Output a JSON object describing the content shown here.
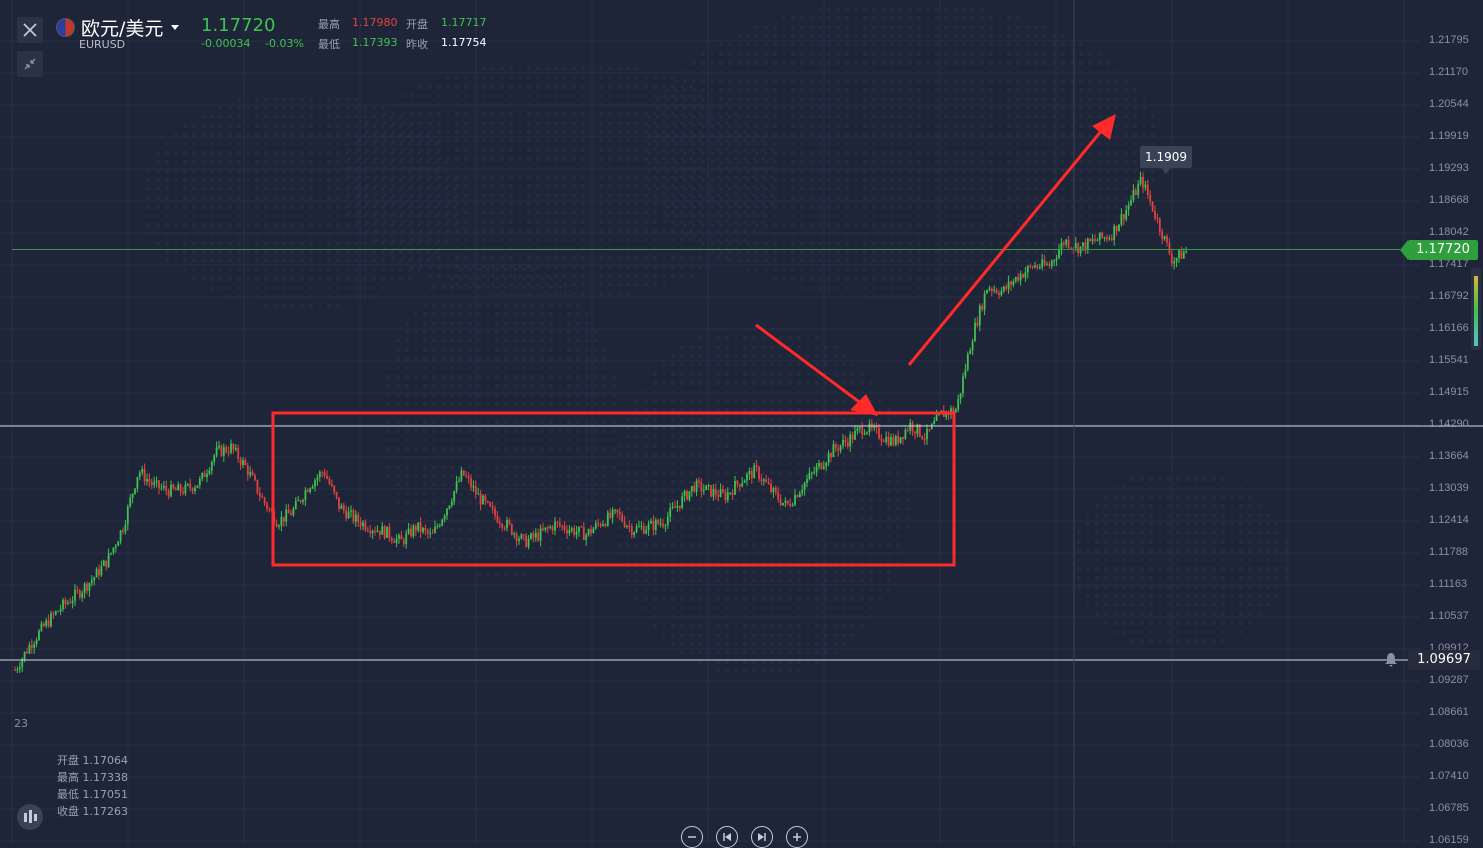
{
  "header": {
    "symbol_name": "欧元/美元",
    "symbol_code": "EURUSD",
    "last_price": "1.17720",
    "change": "-0.00034",
    "change_pct": "-0.03%",
    "high_label": "最高",
    "high_value": "1.17980",
    "open_label": "开盘",
    "open_value": "1.17717",
    "low_label": "最低",
    "low_value": "1.17393",
    "prev_close_label": "昨收",
    "prev_close_value": "1.17754"
  },
  "price_axis": {
    "ticks": [
      "1.21795",
      "1.21170",
      "1.20544",
      "1.19919",
      "1.19293",
      "1.18668",
      "1.18042",
      "1.17417",
      "1.16792",
      "1.16166",
      "1.15541",
      "1.14915",
      "1.14290",
      "1.13664",
      "1.13039",
      "1.12414",
      "1.11788",
      "1.11163",
      "1.10537",
      "1.09912",
      "1.09287",
      "1.08661",
      "1.08036",
      "1.07410",
      "1.06785",
      "1.06159"
    ],
    "current_price_tag": "1.17720",
    "alert_price_tag": "1.09697",
    "peak_tag": "1.1909"
  },
  "date_fragment": "23",
  "ohlc_panel": {
    "open_label": "开盘",
    "open_value": "1.17064",
    "high_label": "最高",
    "high_value": "1.17338",
    "low_label": "最低",
    "low_value": "1.17051",
    "close_label": "收盘",
    "close_value": "1.17263"
  },
  "colors": {
    "background": "#1e2538",
    "up_candle": "#3fc24f",
    "down_candle": "#e0433f",
    "annotation": "#ff2a2a",
    "current_price_line": "#2f9e3c"
  },
  "icons": {
    "close": "close-icon",
    "collapse": "collapse-arrows-icon",
    "zoom_out": "minus-icon",
    "jump_start": "skip-back-icon",
    "jump_end": "skip-forward-icon",
    "zoom_in": "plus-icon",
    "alert": "bell-icon",
    "indicators": "candles-icon"
  },
  "chart_data": {
    "type": "candlestick",
    "title": "",
    "price_range": [
      1.06159,
      1.21795
    ],
    "close_path": [
      1.095,
      1.1001,
      1.104,
      1.1073,
      1.1098,
      1.1127,
      1.1165,
      1.123,
      1.134,
      1.131,
      1.13,
      1.1302,
      1.1318,
      1.1375,
      1.1385,
      1.1345,
      1.1285,
      1.124,
      1.126,
      1.131,
      1.134,
      1.127,
      1.1245,
      1.123,
      1.122,
      1.12,
      1.123,
      1.121,
      1.127,
      1.1335,
      1.129,
      1.1255,
      1.123,
      1.12,
      1.1215,
      1.1235,
      1.1225,
      1.1215,
      1.124,
      1.1255,
      1.1225,
      1.123,
      1.124,
      1.1275,
      1.131,
      1.13,
      1.129,
      1.132,
      1.134,
      1.13,
      1.127,
      1.131,
      1.1345,
      1.138,
      1.14,
      1.1425,
      1.141,
      1.1395,
      1.143,
      1.1405,
      1.145,
      1.146,
      1.16,
      1.17,
      1.169,
      1.172,
      1.174,
      1.174,
      1.179,
      1.1775,
      1.179,
      1.18,
      1.185,
      1.1909,
      1.183,
      1.175,
      1.1772
    ],
    "current_price": 1.1772,
    "alert_level": 1.09697,
    "peak_label": 1.1909,
    "consolidation_box": {
      "from_index": 16,
      "to_index": 59
    },
    "annotations": [
      "red-rectangle-consolidation-zone",
      "red-arrow-breakout",
      "red-arrow-up-target"
    ]
  }
}
